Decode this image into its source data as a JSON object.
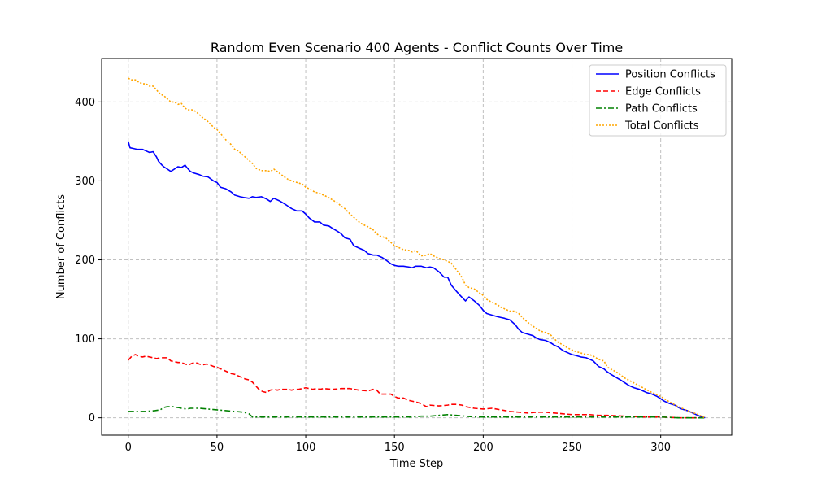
{
  "chart_data": {
    "type": "line",
    "title": "Random Even Scenario 400 Agents - Conflict Counts Over Time",
    "xlabel": "Time Step",
    "ylabel": "Number of Conflicts",
    "xlim": [
      -15,
      340
    ],
    "ylim": [
      -22,
      455
    ],
    "xticks": [
      0,
      50,
      100,
      150,
      200,
      250,
      300
    ],
    "yticks": [
      0,
      100,
      200,
      300,
      400
    ],
    "grid": true,
    "legend_position": "top-right",
    "series": [
      {
        "name": "Position Conflicts",
        "color": "#0000ff",
        "style": "solid",
        "x": [
          0,
          1,
          3,
          5,
          8,
          10,
          12,
          14,
          16,
          17,
          19,
          20,
          22,
          24,
          26,
          28,
          30,
          32,
          33,
          35,
          37,
          40,
          42,
          45,
          48,
          50,
          52,
          55,
          58,
          60,
          63,
          65,
          68,
          70,
          72,
          75,
          78,
          80,
          82,
          85,
          88,
          90,
          92,
          95,
          98,
          100,
          102,
          105,
          108,
          110,
          113,
          115,
          118,
          120,
          122,
          125,
          127,
          130,
          133,
          135,
          138,
          140,
          143,
          145,
          148,
          150,
          152,
          155,
          158,
          160,
          162,
          165,
          168,
          170,
          172,
          175,
          178,
          180,
          182,
          185,
          187,
          190,
          192,
          195,
          198,
          200,
          202,
          205,
          208,
          210,
          212,
          215,
          218,
          220,
          222,
          225,
          228,
          230,
          232,
          235,
          238,
          240,
          242,
          245,
          248,
          250,
          252,
          255,
          258,
          260,
          262,
          265,
          268,
          270,
          272,
          275,
          278,
          280,
          282,
          285,
          288,
          290,
          292,
          295,
          298,
          300,
          302,
          305,
          308,
          310,
          312,
          315,
          318,
          320,
          322,
          325
        ],
        "y": [
          350,
          342,
          341,
          340,
          340,
          338,
          336,
          337,
          330,
          325,
          320,
          318,
          315,
          312,
          315,
          318,
          317,
          320,
          317,
          312,
          310,
          308,
          306,
          305,
          300,
          298,
          292,
          290,
          286,
          282,
          280,
          279,
          278,
          280,
          279,
          280,
          277,
          274,
          278,
          275,
          271,
          268,
          265,
          262,
          262,
          258,
          253,
          248,
          248,
          244,
          243,
          240,
          236,
          233,
          228,
          226,
          218,
          215,
          212,
          208,
          206,
          206,
          203,
          200,
          195,
          193,
          192,
          192,
          191,
          190,
          192,
          192,
          190,
          191,
          190,
          185,
          178,
          178,
          168,
          160,
          155,
          148,
          153,
          148,
          142,
          136,
          132,
          130,
          128,
          127,
          126,
          124,
          118,
          112,
          108,
          106,
          104,
          101,
          99,
          98,
          95,
          92,
          90,
          85,
          82,
          80,
          79,
          77,
          76,
          74,
          72,
          65,
          62,
          58,
          55,
          51,
          47,
          44,
          41,
          38,
          36,
          34,
          32,
          30,
          27,
          24,
          21,
          18,
          16,
          13,
          11,
          9,
          6,
          4,
          2,
          0
        ]
      },
      {
        "name": "Edge Conflicts",
        "color": "#ff0000",
        "style": "dashed",
        "x": [
          0,
          2,
          4,
          6,
          8,
          10,
          12,
          14,
          16,
          18,
          20,
          22,
          24,
          26,
          28,
          30,
          32,
          34,
          36,
          38,
          40,
          42,
          44,
          46,
          48,
          50,
          52,
          54,
          56,
          58,
          60,
          62,
          64,
          66,
          68,
          70,
          72,
          74,
          76,
          78,
          80,
          82,
          84,
          86,
          88,
          90,
          92,
          94,
          96,
          98,
          100,
          102,
          104,
          106,
          108,
          110,
          115,
          120,
          125,
          130,
          135,
          138,
          140,
          142,
          145,
          148,
          150,
          152,
          155,
          158,
          160,
          162,
          165,
          168,
          170,
          175,
          180,
          182,
          185,
          188,
          190,
          195,
          200,
          205,
          210,
          215,
          220,
          225,
          230,
          235,
          240,
          245,
          250,
          255,
          260,
          265,
          270,
          280,
          290,
          300,
          310,
          320,
          325
        ],
        "y": [
          73,
          78,
          80,
          78,
          77,
          78,
          77,
          76,
          75,
          76,
          76,
          76,
          72,
          71,
          70,
          70,
          68,
          67,
          69,
          70,
          68,
          67,
          68,
          67,
          65,
          64,
          62,
          60,
          58,
          56,
          55,
          53,
          51,
          49,
          48,
          45,
          40,
          35,
          33,
          32,
          35,
          36,
          35,
          36,
          36,
          36,
          35,
          36,
          36,
          37,
          38,
          37,
          36,
          37,
          36,
          37,
          36,
          37,
          37,
          35,
          34,
          36,
          35,
          30,
          30,
          30,
          27,
          25,
          25,
          22,
          21,
          20,
          18,
          14,
          16,
          15,
          16,
          17,
          17,
          16,
          14,
          12,
          11,
          12,
          10,
          8,
          7,
          6,
          7,
          7,
          6,
          5,
          4,
          4,
          4,
          3,
          3,
          2,
          1,
          1,
          0,
          0,
          0
        ]
      },
      {
        "name": "Path Conflicts",
        "color": "#008000",
        "style": "dashdot",
        "x": [
          0,
          5,
          10,
          15,
          18,
          20,
          22,
          25,
          28,
          30,
          33,
          35,
          38,
          40,
          45,
          50,
          55,
          60,
          65,
          68,
          70,
          72,
          75,
          80,
          90,
          100,
          110,
          120,
          130,
          140,
          150,
          160,
          165,
          170,
          175,
          180,
          185,
          190,
          195,
          200,
          210,
          220,
          230,
          240,
          250,
          260,
          270,
          280,
          290,
          300,
          310,
          320,
          325
        ],
        "y": [
          8,
          8,
          8,
          9,
          10,
          13,
          14,
          14,
          13,
          12,
          11,
          12,
          12,
          12,
          11,
          10,
          9,
          8,
          7,
          5,
          1,
          1,
          1,
          1,
          1,
          1,
          1,
          1,
          1,
          1,
          1,
          1,
          2,
          2,
          3,
          4,
          3,
          2,
          1,
          1,
          1,
          1,
          1,
          1,
          1,
          1,
          1,
          1,
          1,
          1,
          0,
          0,
          0
        ]
      },
      {
        "name": "Total Conflicts",
        "color": "#ffa500",
        "style": "dotted",
        "x": [
          0,
          2,
          4,
          6,
          8,
          10,
          12,
          14,
          16,
          18,
          20,
          22,
          24,
          26,
          28,
          30,
          32,
          34,
          36,
          38,
          40,
          42,
          45,
          48,
          50,
          52,
          55,
          58,
          60,
          62,
          65,
          68,
          70,
          72,
          75,
          78,
          80,
          82,
          85,
          88,
          90,
          92,
          95,
          98,
          100,
          102,
          105,
          108,
          110,
          112,
          115,
          118,
          120,
          122,
          125,
          128,
          130,
          132,
          135,
          138,
          140,
          142,
          145,
          148,
          150,
          152,
          155,
          158,
          160,
          162,
          165,
          168,
          170,
          172,
          175,
          178,
          180,
          182,
          185,
          188,
          190,
          192,
          195,
          198,
          200,
          202,
          205,
          208,
          210,
          212,
          215,
          218,
          220,
          222,
          225,
          228,
          230,
          232,
          235,
          238,
          240,
          242,
          245,
          248,
          250,
          252,
          255,
          258,
          260,
          262,
          265,
          268,
          270,
          275,
          280,
          285,
          290,
          295,
          300,
          305,
          310,
          315,
          320,
          325
        ],
        "y": [
          430,
          428,
          428,
          425,
          423,
          423,
          420,
          420,
          415,
          410,
          408,
          404,
          400,
          400,
          397,
          398,
          392,
          390,
          390,
          388,
          384,
          380,
          375,
          368,
          365,
          360,
          352,
          346,
          340,
          338,
          332,
          326,
          322,
          316,
          313,
          313,
          312,
          315,
          310,
          305,
          302,
          300,
          298,
          296,
          292,
          290,
          286,
          284,
          282,
          280,
          276,
          272,
          268,
          265,
          258,
          252,
          248,
          245,
          242,
          238,
          233,
          230,
          228,
          222,
          218,
          216,
          213,
          212,
          210,
          212,
          205,
          206,
          208,
          205,
          202,
          200,
          198,
          196,
          187,
          178,
          168,
          165,
          163,
          158,
          155,
          150,
          146,
          143,
          140,
          138,
          135,
          135,
          132,
          127,
          121,
          116,
          113,
          110,
          108,
          105,
          100,
          96,
          92,
          88,
          86,
          84,
          82,
          80,
          80,
          78,
          74,
          72,
          64,
          58,
          50,
          44,
          38,
          32,
          27,
          20,
          14,
          9,
          5,
          0
        ]
      }
    ]
  }
}
